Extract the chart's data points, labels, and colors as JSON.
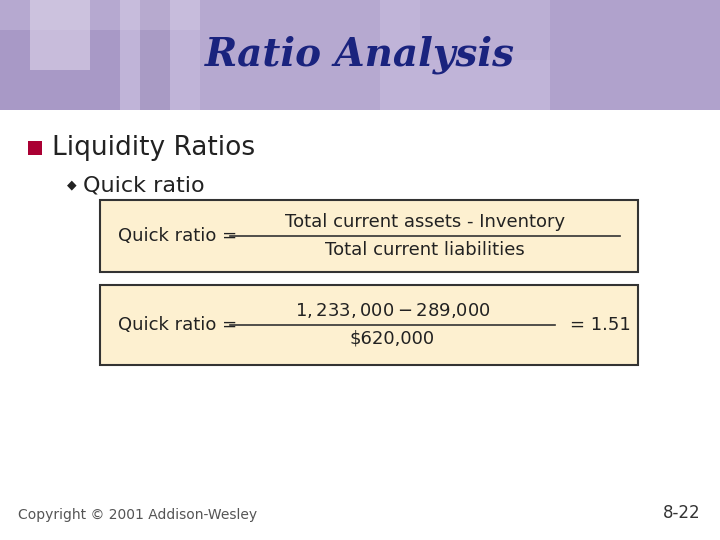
{
  "title": "Ratio Analysis",
  "title_color": "#1a237e",
  "title_fontsize": 28,
  "header_bg_color": "#b8aece",
  "header_photo_color": "#9988bb",
  "slide_bg_color": "#ffffff",
  "bullet1_text": "Liquidity Ratios",
  "bullet1_color": "#aa0033",
  "bullet1_fontsize": 19,
  "bullet2_text": "Quick ratio",
  "bullet2_fontsize": 16,
  "text_color": "#222222",
  "box_bg_color": "#fdf0d0",
  "box_border_color": "#333333",
  "box1_label": "Quick ratio =",
  "box1_numerator": "Total current assets - Inventory",
  "box1_denominator": "Total current liabilities",
  "box2_label": "Quick ratio =",
  "box2_numerator": "$1,233,000 - $289,000",
  "box2_denominator": "$620,000",
  "box2_result": "= 1.51",
  "formula_fontsize": 13,
  "copyright_text": "Copyright © 2001 Addison-Wesley",
  "copyright_fontsize": 10,
  "page_number": "8-22",
  "page_fontsize": 12
}
